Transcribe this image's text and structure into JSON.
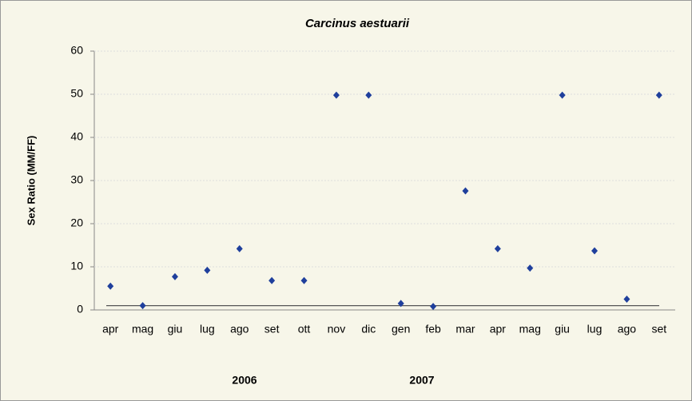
{
  "chart_data": {
    "type": "scatter",
    "title": "Carcinus aestuarii",
    "y_label": "Sex Ratio (MM/FF)",
    "categories": [
      "apr",
      "mag",
      "giu",
      "lug",
      "ago",
      "set",
      "ott",
      "nov",
      "dic",
      "gen",
      "feb",
      "mar",
      "apr",
      "mag",
      "giu",
      "lug",
      "ago",
      "set"
    ],
    "series": [
      {
        "name": "Sex Ratio (MM/FF)",
        "color": "#1f3f9c",
        "values": [
          5.5,
          1,
          7.7,
          9.2,
          14.2,
          6.8,
          6.8,
          49.8,
          49.8,
          1.5,
          0.8,
          27.6,
          14.2,
          9.7,
          49.8,
          13.7,
          2.5,
          49.8
        ]
      }
    ],
    "reference_line": 1,
    "year_labels": [
      "2006",
      "2007"
    ],
    "ylim": [
      0,
      60
    ],
    "yticks": [
      0,
      10,
      20,
      30,
      40,
      50,
      60
    ],
    "grid": true
  }
}
